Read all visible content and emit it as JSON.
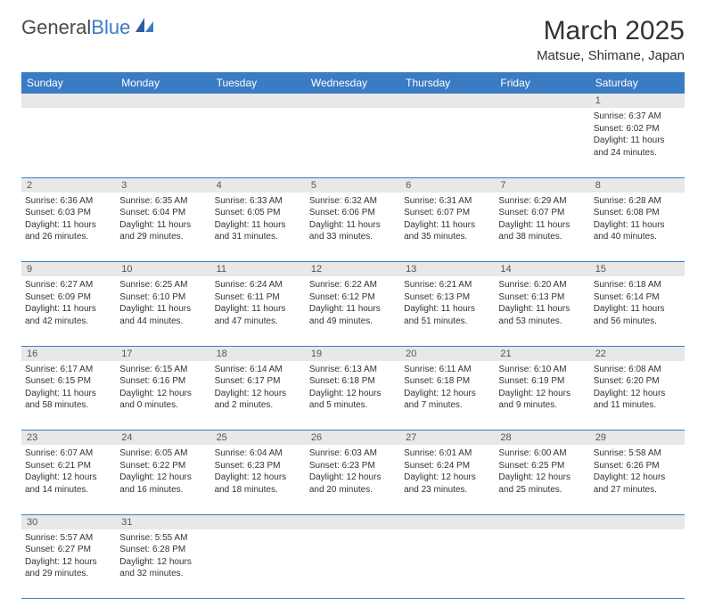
{
  "logo": {
    "general": "General",
    "blue": "Blue"
  },
  "title": "March 2025",
  "location": "Matsue, Shimane, Japan",
  "colors": {
    "header_bg": "#3a7cc4",
    "header_text": "#ffffff",
    "daynum_bg": "#e8e8e8",
    "border": "#3a7cc4",
    "text": "#333333"
  },
  "weekdays": [
    "Sunday",
    "Monday",
    "Tuesday",
    "Wednesday",
    "Thursday",
    "Friday",
    "Saturday"
  ],
  "weeks": [
    [
      null,
      null,
      null,
      null,
      null,
      null,
      {
        "n": "1",
        "sr": "6:37 AM",
        "ss": "6:02 PM",
        "dl": "11 hours and 24 minutes."
      }
    ],
    [
      {
        "n": "2",
        "sr": "6:36 AM",
        "ss": "6:03 PM",
        "dl": "11 hours and 26 minutes."
      },
      {
        "n": "3",
        "sr": "6:35 AM",
        "ss": "6:04 PM",
        "dl": "11 hours and 29 minutes."
      },
      {
        "n": "4",
        "sr": "6:33 AM",
        "ss": "6:05 PM",
        "dl": "11 hours and 31 minutes."
      },
      {
        "n": "5",
        "sr": "6:32 AM",
        "ss": "6:06 PM",
        "dl": "11 hours and 33 minutes."
      },
      {
        "n": "6",
        "sr": "6:31 AM",
        "ss": "6:07 PM",
        "dl": "11 hours and 35 minutes."
      },
      {
        "n": "7",
        "sr": "6:29 AM",
        "ss": "6:07 PM",
        "dl": "11 hours and 38 minutes."
      },
      {
        "n": "8",
        "sr": "6:28 AM",
        "ss": "6:08 PM",
        "dl": "11 hours and 40 minutes."
      }
    ],
    [
      {
        "n": "9",
        "sr": "6:27 AM",
        "ss": "6:09 PM",
        "dl": "11 hours and 42 minutes."
      },
      {
        "n": "10",
        "sr": "6:25 AM",
        "ss": "6:10 PM",
        "dl": "11 hours and 44 minutes."
      },
      {
        "n": "11",
        "sr": "6:24 AM",
        "ss": "6:11 PM",
        "dl": "11 hours and 47 minutes."
      },
      {
        "n": "12",
        "sr": "6:22 AM",
        "ss": "6:12 PM",
        "dl": "11 hours and 49 minutes."
      },
      {
        "n": "13",
        "sr": "6:21 AM",
        "ss": "6:13 PM",
        "dl": "11 hours and 51 minutes."
      },
      {
        "n": "14",
        "sr": "6:20 AM",
        "ss": "6:13 PM",
        "dl": "11 hours and 53 minutes."
      },
      {
        "n": "15",
        "sr": "6:18 AM",
        "ss": "6:14 PM",
        "dl": "11 hours and 56 minutes."
      }
    ],
    [
      {
        "n": "16",
        "sr": "6:17 AM",
        "ss": "6:15 PM",
        "dl": "11 hours and 58 minutes."
      },
      {
        "n": "17",
        "sr": "6:15 AM",
        "ss": "6:16 PM",
        "dl": "12 hours and 0 minutes."
      },
      {
        "n": "18",
        "sr": "6:14 AM",
        "ss": "6:17 PM",
        "dl": "12 hours and 2 minutes."
      },
      {
        "n": "19",
        "sr": "6:13 AM",
        "ss": "6:18 PM",
        "dl": "12 hours and 5 minutes."
      },
      {
        "n": "20",
        "sr": "6:11 AM",
        "ss": "6:18 PM",
        "dl": "12 hours and 7 minutes."
      },
      {
        "n": "21",
        "sr": "6:10 AM",
        "ss": "6:19 PM",
        "dl": "12 hours and 9 minutes."
      },
      {
        "n": "22",
        "sr": "6:08 AM",
        "ss": "6:20 PM",
        "dl": "12 hours and 11 minutes."
      }
    ],
    [
      {
        "n": "23",
        "sr": "6:07 AM",
        "ss": "6:21 PM",
        "dl": "12 hours and 14 minutes."
      },
      {
        "n": "24",
        "sr": "6:05 AM",
        "ss": "6:22 PM",
        "dl": "12 hours and 16 minutes."
      },
      {
        "n": "25",
        "sr": "6:04 AM",
        "ss": "6:23 PM",
        "dl": "12 hours and 18 minutes."
      },
      {
        "n": "26",
        "sr": "6:03 AM",
        "ss": "6:23 PM",
        "dl": "12 hours and 20 minutes."
      },
      {
        "n": "27",
        "sr": "6:01 AM",
        "ss": "6:24 PM",
        "dl": "12 hours and 23 minutes."
      },
      {
        "n": "28",
        "sr": "6:00 AM",
        "ss": "6:25 PM",
        "dl": "12 hours and 25 minutes."
      },
      {
        "n": "29",
        "sr": "5:58 AM",
        "ss": "6:26 PM",
        "dl": "12 hours and 27 minutes."
      }
    ],
    [
      {
        "n": "30",
        "sr": "5:57 AM",
        "ss": "6:27 PM",
        "dl": "12 hours and 29 minutes."
      },
      {
        "n": "31",
        "sr": "5:55 AM",
        "ss": "6:28 PM",
        "dl": "12 hours and 32 minutes."
      },
      null,
      null,
      null,
      null,
      null
    ]
  ],
  "labels": {
    "sunrise": "Sunrise:",
    "sunset": "Sunset:",
    "daylight": "Daylight:"
  }
}
